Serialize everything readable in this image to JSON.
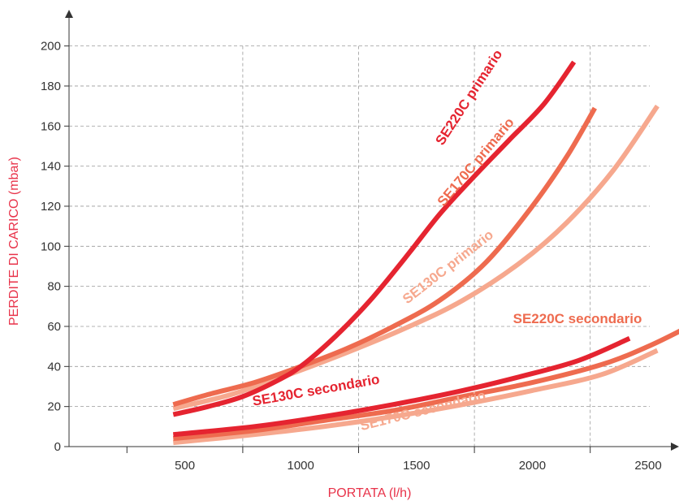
{
  "chart_data": {
    "type": "line",
    "xlabel": "PORTATA (l/h)",
    "ylabel": "PERDITE DI CARICO (mbar)",
    "xlim": [
      0,
      2650
    ],
    "ylim": [
      0,
      200
    ],
    "xticks": [
      500,
      1000,
      1500,
      2000,
      2500
    ],
    "yticks": [
      0,
      20,
      40,
      60,
      80,
      100,
      120,
      140,
      160,
      180,
      200
    ],
    "grid": true,
    "grid_style": "dashed",
    "colors": {
      "axis_title": "#e8334a",
      "SE220C": "#e52430",
      "SE170C": "#ee6b4f",
      "SE130C": "#f6a88e"
    },
    "series": [
      {
        "name": "SE220C primario",
        "color": "#e52430",
        "x": [
          450,
          600,
          750,
          900,
          1000,
          1150,
          1300,
          1450,
          1600,
          1750,
          1900,
          2050,
          2180
        ],
        "y": [
          16,
          20,
          25,
          33,
          40,
          55,
          73,
          94,
          116,
          135,
          153,
          171,
          192
        ]
      },
      {
        "name": "SE170C primario",
        "color": "#ee6b4f",
        "x": [
          450,
          600,
          800,
          1000,
          1200,
          1400,
          1600,
          1800,
          2000,
          2150,
          2270
        ],
        "y": [
          21,
          26,
          32,
          40,
          49,
          60,
          73,
          92,
          120,
          145,
          169
        ]
      },
      {
        "name": "SE130C primario",
        "color": "#f6a88e",
        "x": [
          450,
          700,
          950,
          1200,
          1450,
          1700,
          1950,
          2150,
          2350,
          2540
        ],
        "y": [
          19,
          26,
          36,
          47,
          59,
          73,
          92,
          112,
          138,
          170
        ]
      },
      {
        "name": "SE130C secondario",
        "color": "#e52430",
        "x": [
          450,
          800,
          1100,
          1400,
          1700,
          1950,
          2200,
          2420
        ],
        "y": [
          6,
          10,
          15,
          21,
          28,
          35,
          43,
          54
        ]
      },
      {
        "name": "SE220C secondario",
        "color": "#ee6b4f",
        "x": [
          450,
          800,
          1100,
          1400,
          1700,
          2000,
          2300,
          2500,
          2660
        ],
        "y": [
          4,
          8,
          13,
          18,
          25,
          32,
          41,
          50,
          59
        ]
      },
      {
        "name": "SE170C secondario",
        "color": "#f6a88e",
        "x": [
          450,
          800,
          1100,
          1400,
          1700,
          2000,
          2300,
          2540
        ],
        "y": [
          2,
          6,
          10,
          15,
          21,
          28,
          36,
          48
        ]
      }
    ],
    "labels": [
      {
        "text": "SE220C primario",
        "series": 0
      },
      {
        "text": "SE170C primario",
        "series": 1
      },
      {
        "text": "SE130C primario",
        "series": 2
      },
      {
        "text": "SE130C secondario",
        "series": 3
      },
      {
        "text": "SE220C secondario",
        "series": 4
      },
      {
        "text": "SE170C secondario",
        "series": 5
      }
    ]
  }
}
